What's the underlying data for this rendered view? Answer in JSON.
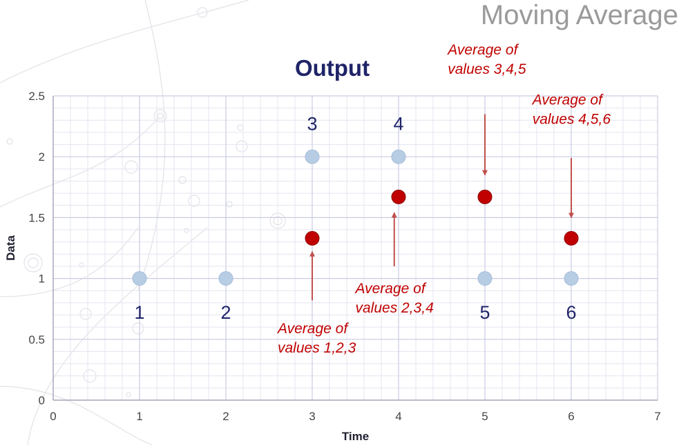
{
  "slide": {
    "title": "Moving Average"
  },
  "colors": {
    "input_point": "#b7cde4",
    "average_point": "#c00000",
    "annotation": "#c00000",
    "title": "#1f2368",
    "grid_major": "#c9cbe3",
    "grid_minor": "#e4e5f1"
  },
  "chart_data": {
    "type": "scatter",
    "title": "Output",
    "xlabel": "Time",
    "ylabel": "Data",
    "xlim": [
      0,
      7
    ],
    "ylim": [
      0,
      2.5
    ],
    "xticks": [
      "0",
      "1",
      "2",
      "3",
      "4",
      "5",
      "6",
      "7"
    ],
    "yticks": [
      "0",
      "0.5",
      "1",
      "1.5",
      "2",
      "2.5"
    ],
    "grid": true,
    "series": [
      {
        "x": [
          1,
          2,
          3,
          4,
          5,
          6
        ],
        "y": [
          1,
          1,
          2,
          2,
          1,
          1
        ]
      },
      {
        "x": [
          3,
          4,
          5,
          6
        ],
        "y": [
          1.33,
          1.67,
          1.67,
          1.33
        ]
      }
    ],
    "point_labels": [
      {
        "text": "1",
        "x": 1,
        "y": 0.67
      },
      {
        "text": "2",
        "x": 2,
        "y": 0.67
      },
      {
        "text": "3",
        "x": 3,
        "y": 2.22
      },
      {
        "text": "4",
        "x": 4,
        "y": 2.22
      },
      {
        "text": "5",
        "x": 5,
        "y": 0.67
      },
      {
        "text": "6",
        "x": 6,
        "y": 0.67
      }
    ],
    "annotations": [
      {
        "lines": [
          "Average of",
          "values 1,2,3"
        ],
        "text_x": 2.6,
        "text_y": 0.55,
        "arrow_from": [
          3,
          0.82
        ],
        "arrow_to": [
          3,
          1.22
        ]
      },
      {
        "lines": [
          "Average of",
          "values 2,3,4"
        ],
        "text_x": 3.5,
        "text_y": 0.88,
        "arrow_from": [
          3.95,
          1.1
        ],
        "arrow_to": [
          3.95,
          1.54
        ]
      },
      {
        "lines": [
          "Average of",
          "values 3,4,5"
        ],
        "text_x": 4.57,
        "text_y": 2.84,
        "arrow_from": [
          5,
          2.35
        ],
        "arrow_to": [
          5,
          1.85
        ]
      },
      {
        "lines": [
          "Average of",
          "values 4,5,6"
        ],
        "text_x": 5.55,
        "text_y": 2.43,
        "arrow_from": [
          6,
          1.99
        ],
        "arrow_to": [
          6,
          1.5
        ]
      }
    ]
  }
}
